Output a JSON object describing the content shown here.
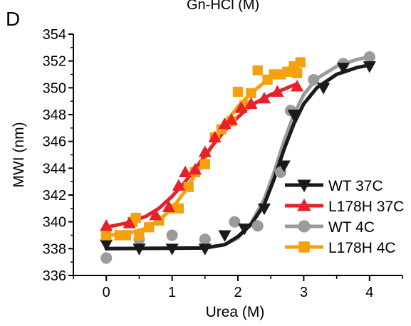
{
  "panel_label": "D",
  "top_clipped_text": "Gn-HCl (M)",
  "chart_data": {
    "type": "scatter",
    "title": "",
    "xlabel": "Urea (M)",
    "ylabel": "MWI (nm)",
    "xlim": [
      -0.5,
      4.5
    ],
    "ylim": [
      336,
      354
    ],
    "xticks": [
      0,
      1,
      2,
      3,
      4
    ],
    "yticks": [
      336,
      338,
      340,
      342,
      344,
      346,
      348,
      350,
      352,
      354
    ],
    "grid": false,
    "legend_position": "lower-right",
    "series": [
      {
        "name": "WT 37C",
        "color": "#1a1a1a",
        "marker": "triangle-down",
        "points": [
          [
            0,
            338.3
          ],
          [
            0.5,
            338.0
          ],
          [
            1.0,
            338.0
          ],
          [
            1.5,
            338.0
          ],
          [
            1.8,
            339.0
          ],
          [
            2.1,
            339.5
          ],
          [
            2.4,
            341.0
          ],
          [
            2.7,
            344.2
          ],
          [
            2.85,
            348.0
          ],
          [
            3.3,
            350.0
          ],
          [
            3.6,
            351.5
          ],
          [
            4.0,
            351.6
          ]
        ],
        "fit": [
          [
            0,
            338.0
          ],
          [
            1.5,
            338.05
          ],
          [
            1.8,
            338.3
          ],
          [
            2.0,
            338.9
          ],
          [
            2.2,
            339.8
          ],
          [
            2.4,
            341.3
          ],
          [
            2.55,
            343.2
          ],
          [
            2.7,
            345.4
          ],
          [
            2.85,
            347.3
          ],
          [
            3.0,
            348.8
          ],
          [
            3.2,
            350.0
          ],
          [
            3.5,
            351.0
          ],
          [
            3.8,
            351.5
          ],
          [
            4.0,
            351.7
          ]
        ]
      },
      {
        "name": "L178H 37C",
        "color": "#e8202a",
        "marker": "triangle-up",
        "points": [
          [
            0,
            339.7
          ],
          [
            0.35,
            339.9
          ],
          [
            0.75,
            340.5
          ],
          [
            0.95,
            341.1
          ],
          [
            1.1,
            342.7
          ],
          [
            1.2,
            343.7
          ],
          [
            1.35,
            343.9
          ],
          [
            1.5,
            345.2
          ],
          [
            1.65,
            346.3
          ],
          [
            1.8,
            347.3
          ],
          [
            1.9,
            347.6
          ],
          [
            2.05,
            348.5
          ],
          [
            2.2,
            348.8
          ],
          [
            2.4,
            349.2
          ],
          [
            2.6,
            349.7
          ],
          [
            2.9,
            350.1
          ]
        ],
        "fit": [
          [
            0,
            339.6
          ],
          [
            0.3,
            339.9
          ],
          [
            0.6,
            340.4
          ],
          [
            0.8,
            341.0
          ],
          [
            1.0,
            341.9
          ],
          [
            1.2,
            343.0
          ],
          [
            1.4,
            344.3
          ],
          [
            1.6,
            345.6
          ],
          [
            1.8,
            346.8
          ],
          [
            2.0,
            347.8
          ],
          [
            2.2,
            348.7
          ],
          [
            2.5,
            349.5
          ],
          [
            2.9,
            350.3
          ]
        ]
      },
      {
        "name": "WT 4C",
        "color": "#9b9b9b",
        "marker": "circle",
        "points": [
          [
            0,
            337.3
          ],
          [
            0.5,
            338.7
          ],
          [
            1.0,
            339.0
          ],
          [
            1.5,
            338.7
          ],
          [
            1.95,
            340.0
          ],
          [
            2.3,
            339.7
          ],
          [
            2.65,
            343.7
          ],
          [
            2.8,
            348.3
          ],
          [
            3.15,
            350.6
          ],
          [
            3.6,
            351.8
          ],
          [
            4.0,
            352.3
          ]
        ],
        "fit": [
          [
            0,
            338.0
          ],
          [
            1.5,
            338.05
          ],
          [
            1.8,
            338.3
          ],
          [
            2.0,
            338.8
          ],
          [
            2.2,
            339.9
          ],
          [
            2.4,
            341.7
          ],
          [
            2.55,
            343.7
          ],
          [
            2.7,
            346.0
          ],
          [
            2.85,
            348.0
          ],
          [
            3.0,
            349.5
          ],
          [
            3.2,
            350.7
          ],
          [
            3.5,
            351.6
          ],
          [
            3.8,
            352.1
          ],
          [
            4.0,
            352.3
          ]
        ]
      },
      {
        "name": "L178H 4C",
        "color": "#f5a00f",
        "marker": "square",
        "points": [
          [
            0,
            339.0
          ],
          [
            0.2,
            339.0
          ],
          [
            0.3,
            339.0
          ],
          [
            0.4,
            340.0
          ],
          [
            0.45,
            340.3
          ],
          [
            0.5,
            339.0
          ],
          [
            0.65,
            339.6
          ],
          [
            0.8,
            340.1
          ],
          [
            1.0,
            341.0
          ],
          [
            1.1,
            341.0
          ],
          [
            1.25,
            342.6
          ],
          [
            1.35,
            343.7
          ],
          [
            1.5,
            344.3
          ],
          [
            1.65,
            346.3
          ],
          [
            1.75,
            346.9
          ],
          [
            1.9,
            347.5
          ],
          [
            2.0,
            349.7
          ],
          [
            2.1,
            348.7
          ],
          [
            2.2,
            349.6
          ],
          [
            2.3,
            351.3
          ],
          [
            2.45,
            350.6
          ],
          [
            2.55,
            351.0
          ],
          [
            2.65,
            351.0
          ],
          [
            2.75,
            351.2
          ],
          [
            2.85,
            351.6
          ],
          [
            2.9,
            351.1
          ],
          [
            2.95,
            351.9
          ]
        ],
        "fit": [
          [
            0,
            339.0
          ],
          [
            0.3,
            339.1
          ],
          [
            0.6,
            339.5
          ],
          [
            0.8,
            340.1
          ],
          [
            1.0,
            341.0
          ],
          [
            1.2,
            342.3
          ],
          [
            1.4,
            343.9
          ],
          [
            1.6,
            345.6
          ],
          [
            1.8,
            347.3
          ],
          [
            2.0,
            348.6
          ],
          [
            2.2,
            349.6
          ],
          [
            2.4,
            350.4
          ],
          [
            2.6,
            351.0
          ],
          [
            2.9,
            351.6
          ]
        ]
      }
    ]
  }
}
